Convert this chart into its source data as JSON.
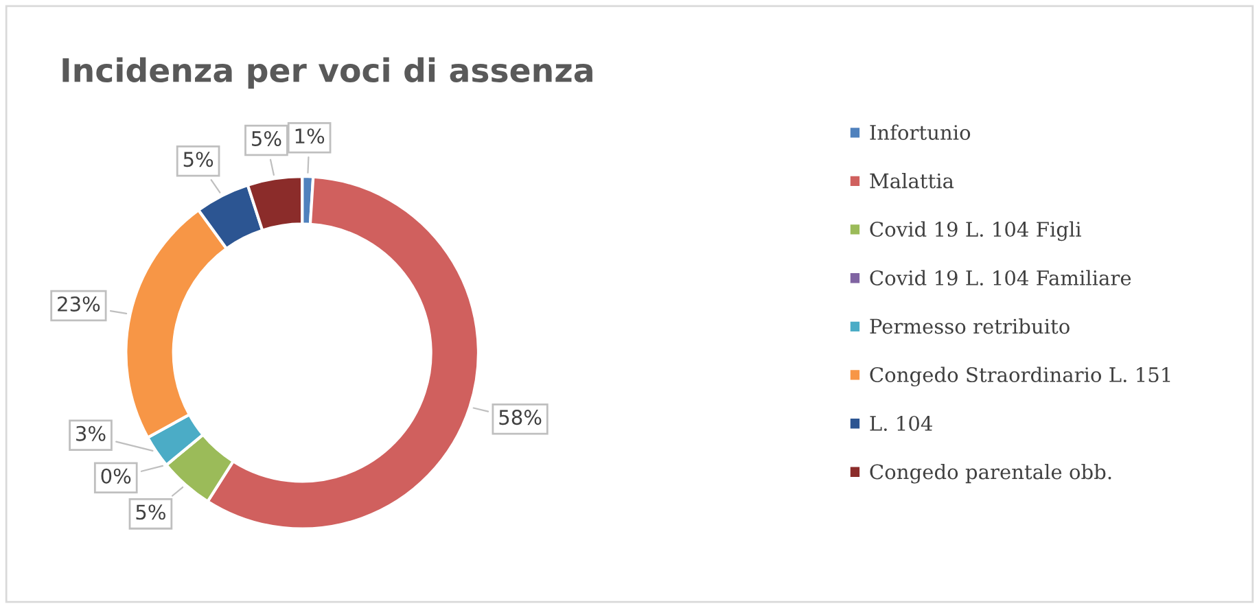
{
  "chart_data": {
    "type": "donut",
    "title": "Incidenza per voci di assenza",
    "categories": [
      "Infortunio",
      "Malattia",
      "Covid 19 L. 104 Figli",
      "Covid 19 L. 104 Familiare",
      "Permesso retribuito",
      "Congedo Straordinario L. 151",
      "L. 104",
      "Congedo parentale obb."
    ],
    "values": [
      1,
      58,
      5,
      0,
      3,
      23,
      5,
      5
    ],
    "colors": [
      "#4f81bd",
      "#d0605e",
      "#9bbb59",
      "#8064a2",
      "#4bacc6",
      "#f79646",
      "#2c5592",
      "#8b2c2a"
    ],
    "value_labels": [
      "1%",
      "58%",
      "5%",
      "0%",
      "3%",
      "23%",
      "5%",
      "5%"
    ],
    "legend": "right"
  }
}
